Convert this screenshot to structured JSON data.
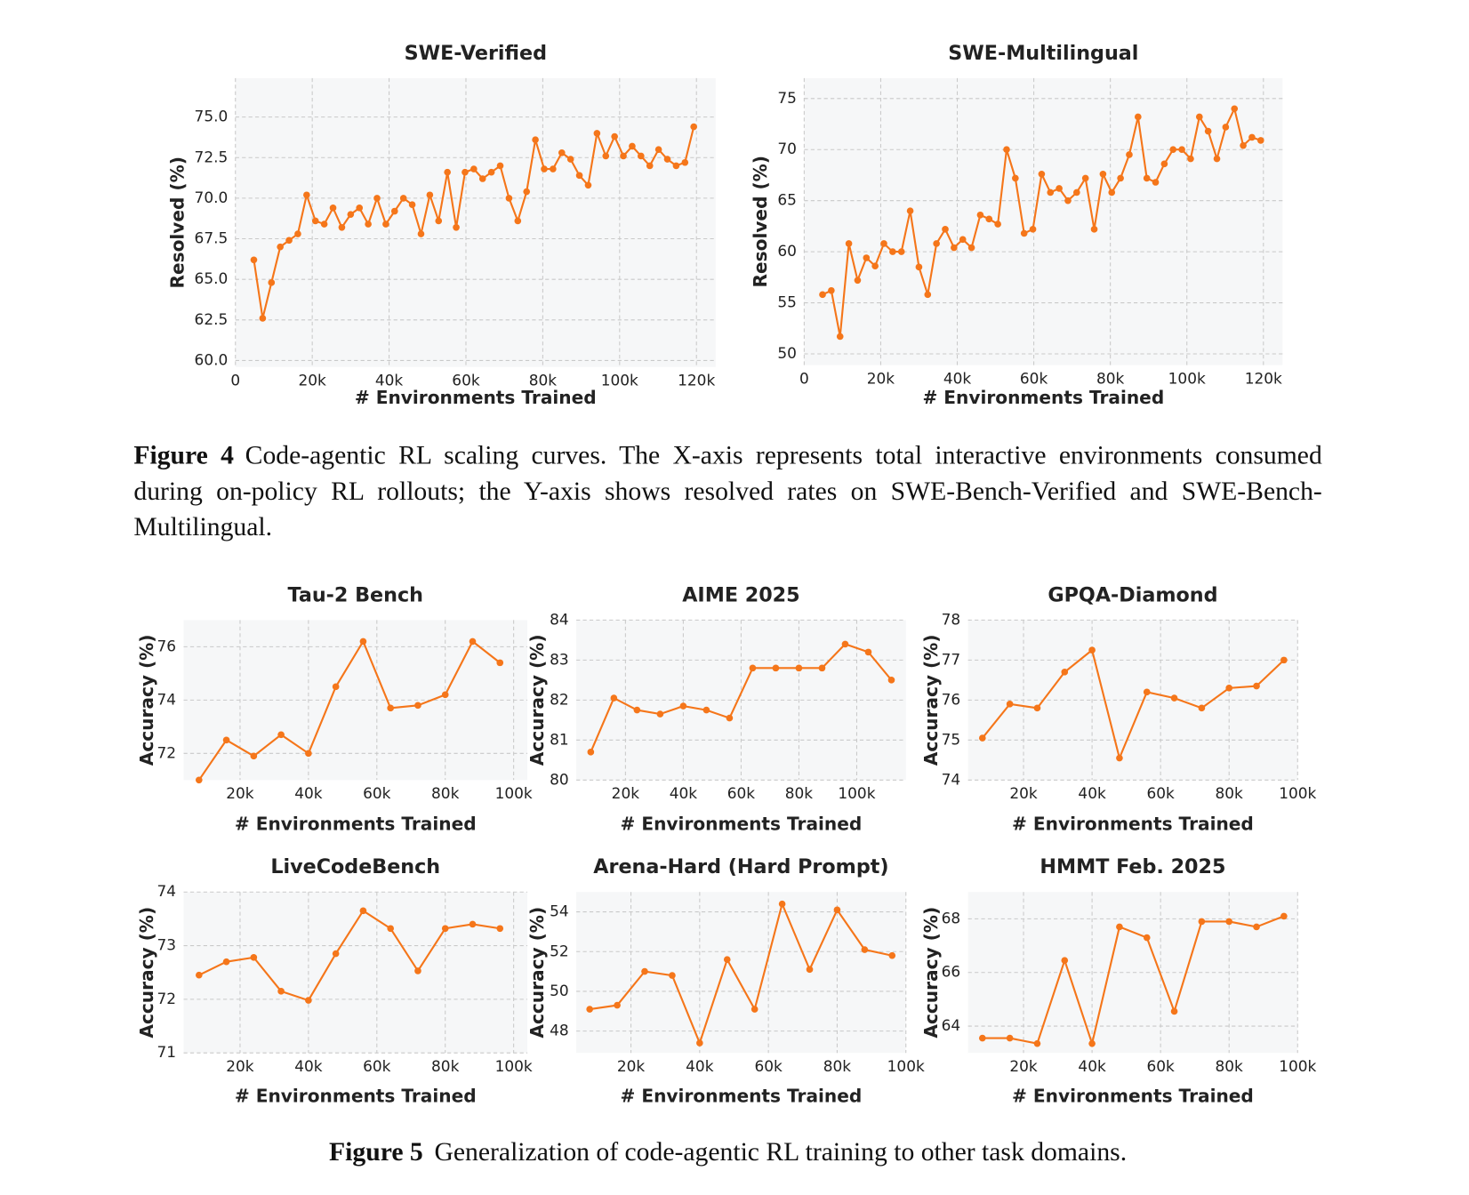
{
  "chart_data": [
    {
      "type": "line",
      "title": "SWE-Verified",
      "x_label": "# Environments Trained",
      "y_label": "Resolved (%)",
      "color": "#f5761a",
      "grid": true,
      "xlim": [
        0,
        125000
      ],
      "ylim": [
        59.6,
        77.4
      ],
      "xticks": [
        0,
        {
          "value": 20000,
          "label": "20k"
        },
        {
          "value": 40000,
          "label": "40k"
        },
        {
          "value": 60000,
          "label": "60k"
        },
        {
          "value": 80000,
          "label": "80k"
        },
        {
          "value": 100000,
          "label": "100k"
        },
        {
          "value": 120000,
          "label": "120k"
        }
      ],
      "yticks": [
        {
          "value": 60,
          "label": "60.0"
        },
        62.5,
        {
          "value": 65,
          "label": "65.0"
        },
        67.5,
        {
          "value": 70,
          "label": "70.0"
        },
        72.5,
        {
          "value": 75,
          "label": "75.0"
        }
      ],
      "x": [
        4800,
        7090,
        9380,
        11670,
        13960,
        16250,
        18540,
        20830,
        23120,
        25410,
        27700,
        29990,
        32280,
        34570,
        36860,
        39150,
        41440,
        43730,
        46020,
        48310,
        50600,
        52890,
        55180,
        57470,
        59760,
        62050,
        64340,
        66630,
        68920,
        71210,
        73500,
        75790,
        78080,
        80370,
        82660,
        84950,
        87240,
        89530,
        91820,
        94110,
        96400,
        98690,
        100980,
        103270,
        105560,
        107850,
        110140,
        112430,
        114720,
        117010,
        119300
      ],
      "values": [
        66.2,
        62.6,
        64.8,
        67.0,
        67.4,
        67.8,
        70.2,
        68.6,
        68.4,
        69.4,
        68.2,
        69.0,
        69.4,
        68.4,
        70.0,
        68.4,
        69.2,
        70.0,
        69.6,
        67.8,
        70.2,
        68.6,
        71.6,
        68.2,
        71.6,
        71.8,
        71.2,
        71.6,
        72.0,
        70.0,
        68.6,
        70.4,
        73.6,
        71.8,
        71.8,
        72.8,
        72.4,
        71.4,
        70.8,
        74.0,
        72.6,
        73.8,
        72.6,
        73.2,
        72.6,
        72.0,
        73.0,
        72.4,
        72.0,
        72.2,
        74.4
      ]
    },
    {
      "type": "line",
      "title": "SWE-Multilingual",
      "x_label": "# Environments Trained",
      "y_label": "Resolved (%)",
      "color": "#f5761a",
      "grid": true,
      "xlim": [
        0,
        125000
      ],
      "ylim": [
        48.9,
        77
      ],
      "xticks": [
        0,
        {
          "value": 20000,
          "label": "20k"
        },
        {
          "value": 40000,
          "label": "40k"
        },
        {
          "value": 60000,
          "label": "60k"
        },
        {
          "value": 80000,
          "label": "80k"
        },
        {
          "value": 100000,
          "label": "100k"
        },
        {
          "value": 120000,
          "label": "120k"
        }
      ],
      "yticks": [
        50,
        55,
        60,
        65,
        70,
        75
      ],
      "x": [
        4800,
        7090,
        9380,
        11670,
        13960,
        16250,
        18540,
        20830,
        23120,
        25410,
        27700,
        29990,
        32280,
        34570,
        36860,
        39150,
        41440,
        43730,
        46020,
        48310,
        50600,
        52890,
        55180,
        57470,
        59760,
        62050,
        64340,
        66630,
        68920,
        71210,
        73500,
        75790,
        78080,
        80370,
        82660,
        84950,
        87240,
        89530,
        91820,
        94110,
        96400,
        98690,
        100980,
        103270,
        105560,
        107850,
        110140,
        112430,
        114720,
        117010,
        119300
      ],
      "values": [
        55.8,
        56.2,
        51.7,
        60.8,
        57.2,
        59.4,
        58.6,
        60.8,
        60.0,
        60.0,
        64.0,
        58.5,
        55.8,
        60.8,
        62.2,
        60.4,
        61.2,
        60.4,
        63.6,
        63.2,
        62.7,
        70.0,
        67.2,
        61.8,
        62.2,
        67.6,
        65.8,
        66.2,
        65.0,
        65.8,
        67.2,
        62.2,
        67.6,
        65.8,
        67.2,
        69.5,
        73.2,
        67.2,
        66.8,
        68.6,
        70.0,
        70.0,
        69.1,
        73.2,
        71.8,
        69.1,
        72.2,
        74.0,
        70.4,
        71.2,
        70.9
      ]
    },
    {
      "type": "line",
      "title": "Tau-2 Bench",
      "x_label": "# Environments Trained",
      "y_label": "Accuracy (%)",
      "color": "#f5761a",
      "grid": true,
      "xlim": [
        3500,
        104000
      ],
      "ylim": [
        71,
        77
      ],
      "xticks": [
        {
          "value": 20000,
          "label": "20k"
        },
        {
          "value": 40000,
          "label": "40k"
        },
        {
          "value": 60000,
          "label": "60k"
        },
        {
          "value": 80000,
          "label": "80k"
        },
        {
          "value": 100000,
          "label": "100k"
        }
      ],
      "yticks": [
        72,
        74,
        76
      ],
      "x": [
        8000,
        16000,
        24000,
        32000,
        40000,
        48000,
        56000,
        64000,
        72000,
        80000,
        88000,
        96000
      ],
      "values": [
        71.0,
        72.5,
        71.9,
        72.7,
        72.0,
        74.5,
        76.2,
        73.7,
        73.8,
        74.2,
        76.2,
        75.4
      ]
    },
    {
      "type": "line",
      "title": "AIME 2025",
      "x_label": "# Environments Trained",
      "y_label": "Accuracy (%)",
      "color": "#f5761a",
      "grid": true,
      "xlim": [
        3000,
        117000
      ],
      "ylim": [
        80,
        84
      ],
      "xticks": [
        {
          "value": 20000,
          "label": "20k"
        },
        {
          "value": 40000,
          "label": "40k"
        },
        {
          "value": 60000,
          "label": "60k"
        },
        {
          "value": 80000,
          "label": "80k"
        },
        {
          "value": 100000,
          "label": "100k"
        }
      ],
      "yticks": [
        80,
        81,
        82,
        83,
        84
      ],
      "x": [
        8000,
        16000,
        24000,
        32000,
        40000,
        48000,
        56000,
        64000,
        72000,
        80000,
        88000,
        96000,
        104000,
        112000
      ],
      "values": [
        80.7,
        82.05,
        81.75,
        81.65,
        81.85,
        81.75,
        81.55,
        82.8,
        82.8,
        82.8,
        82.8,
        83.4,
        83.2,
        82.5
      ]
    },
    {
      "type": "line",
      "title": "GPQA-Diamond",
      "x_label": "# Environments Trained",
      "y_label": "Accuracy (%)",
      "color": "#f5761a",
      "grid": true,
      "xlim": [
        3800,
        100000
      ],
      "ylim": [
        74,
        78
      ],
      "xticks": [
        {
          "value": 20000,
          "label": "20k"
        },
        {
          "value": 40000,
          "label": "40k"
        },
        {
          "value": 60000,
          "label": "60k"
        },
        {
          "value": 80000,
          "label": "80k"
        },
        {
          "value": 100000,
          "label": "100k"
        }
      ],
      "yticks": [
        74,
        75,
        76,
        77,
        78
      ],
      "x": [
        8000,
        16000,
        24000,
        32000,
        40000,
        48000,
        56000,
        64000,
        72000,
        80000,
        88000,
        96000
      ],
      "values": [
        75.05,
        75.9,
        75.8,
        76.7,
        77.25,
        74.55,
        76.2,
        76.05,
        75.8,
        76.3,
        76.35,
        77.0
      ]
    },
    {
      "type": "line",
      "title": "LiveCodeBench",
      "x_label": "# Environments Trained",
      "y_label": "Accuracy (%)",
      "color": "#f5761a",
      "grid": true,
      "xlim": [
        3500,
        104000
      ],
      "ylim": [
        71,
        74
      ],
      "xticks": [
        {
          "value": 20000,
          "label": "20k"
        },
        {
          "value": 40000,
          "label": "40k"
        },
        {
          "value": 60000,
          "label": "60k"
        },
        {
          "value": 80000,
          "label": "80k"
        },
        {
          "value": 100000,
          "label": "100k"
        }
      ],
      "yticks": [
        71,
        72,
        73,
        74
      ],
      "x": [
        8000,
        16000,
        24000,
        32000,
        40000,
        48000,
        56000,
        64000,
        72000,
        80000,
        88000,
        96000
      ],
      "values": [
        72.45,
        72.7,
        72.78,
        72.15,
        71.98,
        72.85,
        73.65,
        73.32,
        72.53,
        73.32,
        73.4,
        73.32
      ]
    },
    {
      "type": "line",
      "title": "Arena-Hard (Hard Prompt)",
      "x_label": "# Environments Trained",
      "y_label": "Accuracy (%)",
      "color": "#f5761a",
      "grid": true,
      "xlim": [
        4100,
        100000
      ],
      "ylim": [
        46.9,
        55
      ],
      "xticks": [
        {
          "value": 20000,
          "label": "20k"
        },
        {
          "value": 40000,
          "label": "40k"
        },
        {
          "value": 60000,
          "label": "60k"
        },
        {
          "value": 80000,
          "label": "80k"
        },
        {
          "value": 100000,
          "label": "100k"
        }
      ],
      "yticks": [
        48,
        50,
        52,
        54
      ],
      "x": [
        8000,
        16000,
        24000,
        32000,
        40000,
        48000,
        56000,
        64000,
        72000,
        80000,
        88000,
        96000
      ],
      "values": [
        49.1,
        49.3,
        51.0,
        50.8,
        47.4,
        51.6,
        49.1,
        54.4,
        51.1,
        54.1,
        52.1,
        51.8
      ]
    },
    {
      "type": "line",
      "title": "HMMT Feb. 2025",
      "x_label": "# Environments Trained",
      "y_label": "Accuracy (%)",
      "color": "#f5761a",
      "grid": true,
      "xlim": [
        3800,
        100000
      ],
      "ylim": [
        63,
        69
      ],
      "xticks": [
        {
          "value": 20000,
          "label": "20k"
        },
        {
          "value": 40000,
          "label": "40k"
        },
        {
          "value": 60000,
          "label": "60k"
        },
        {
          "value": 80000,
          "label": "80k"
        },
        {
          "value": 100000,
          "label": "100k"
        }
      ],
      "yticks": [
        64,
        66,
        68
      ],
      "x": [
        8000,
        16000,
        24000,
        32000,
        40000,
        48000,
        56000,
        64000,
        72000,
        80000,
        88000,
        96000
      ],
      "values": [
        63.55,
        63.55,
        63.35,
        66.45,
        63.35,
        67.7,
        67.3,
        64.55,
        67.9,
        67.9,
        67.7,
        68.1
      ]
    }
  ],
  "captions": [
    {
      "label": "Figure 4",
      "text": "Code-agentic RL scaling curves. The X-axis represents total interactive environments consumed during on-policy RL rollouts; the Y-axis shows resolved rates on SWE-Bench-Verified and SWE-Bench-Multilingual."
    },
    {
      "label": "Figure 5",
      "text": "Generalization of code-agentic RL training to other task domains."
    }
  ]
}
